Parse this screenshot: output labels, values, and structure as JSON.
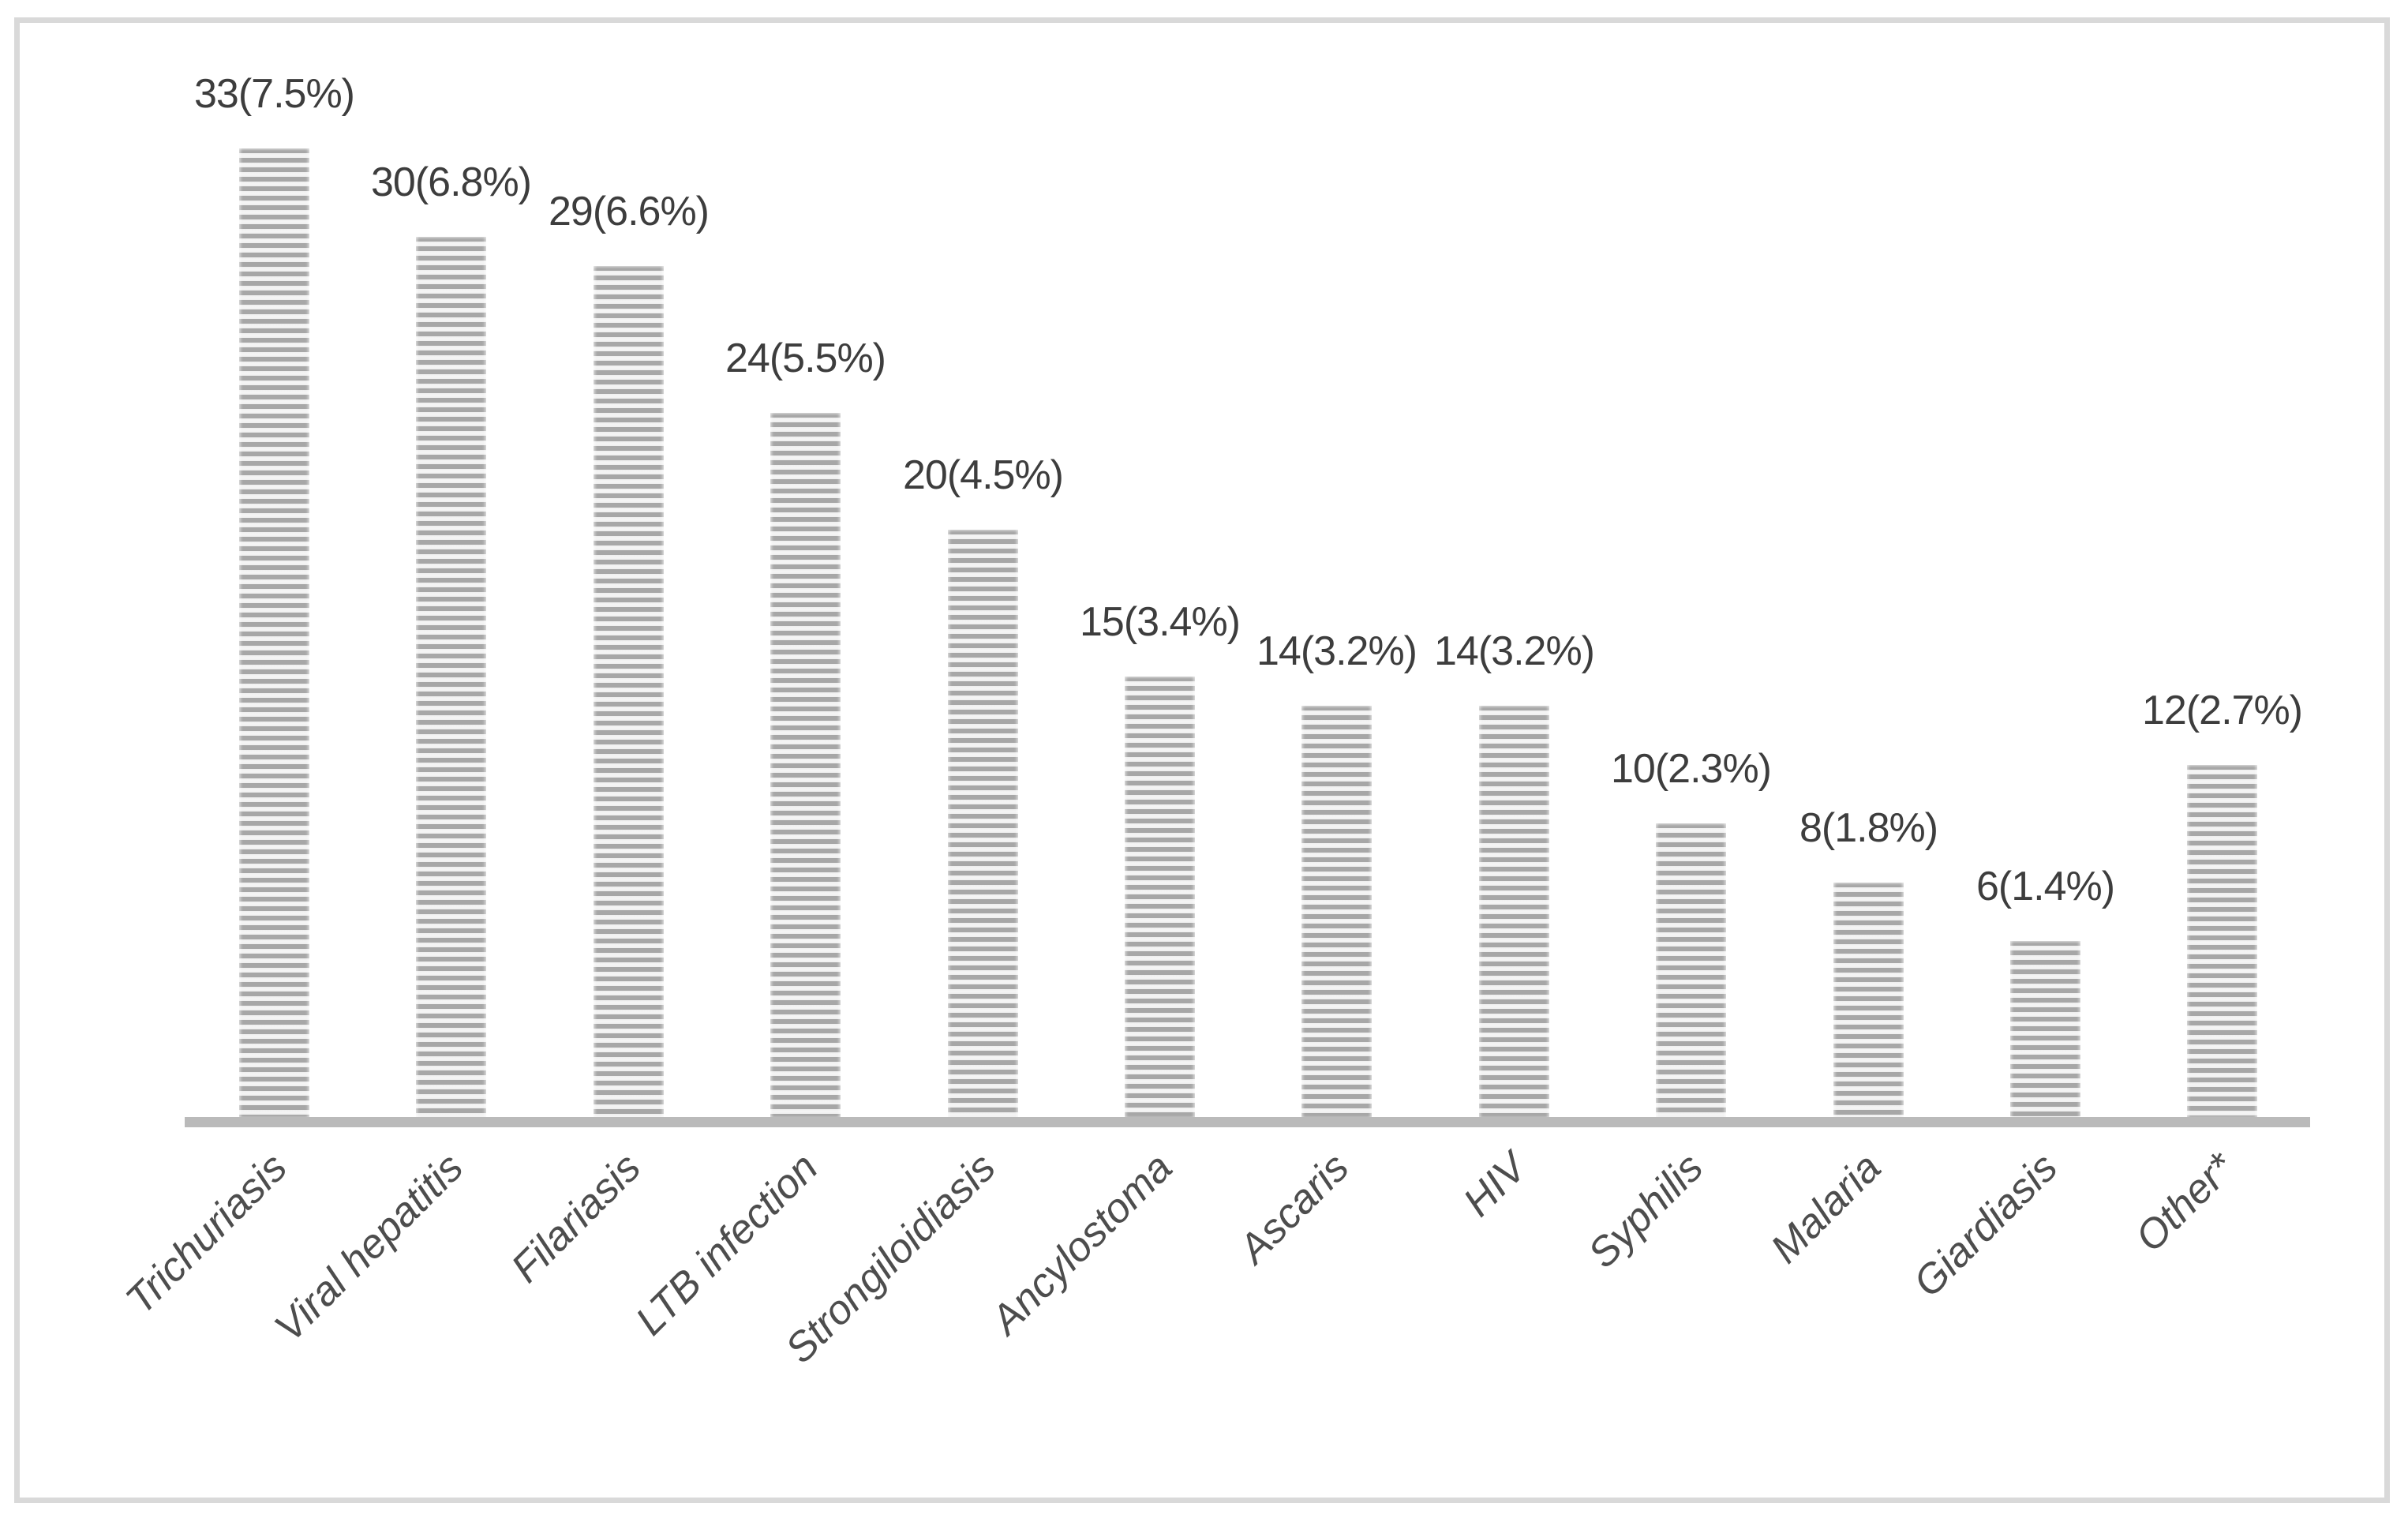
{
  "chart_data": {
    "type": "bar",
    "title": "",
    "xlabel": "",
    "ylabel": "",
    "categories": [
      "Trichuriasis",
      "Viral hepatitis",
      "Filariasis",
      "LTB infection",
      "Strongiloidiasis",
      "Ancylostoma",
      "Ascaris",
      "HIV",
      "Syphilis",
      "Malaria",
      "Giardiasis",
      "Other*"
    ],
    "values": [
      33,
      30,
      29,
      24,
      20,
      15,
      14,
      14,
      10,
      8,
      6,
      12
    ],
    "percentages": [
      7.5,
      6.8,
      6.6,
      5.5,
      4.5,
      3.4,
      3.2,
      3.2,
      2.3,
      1.8,
      1.4,
      2.7
    ],
    "point_labels": [
      "33(7.5%)",
      "30(6.8%)",
      "29(6.6%)",
      "24(5.5%)",
      "20(4.5%)",
      "15(3.4%)",
      "14(3.2%)",
      "14(3.2%)",
      "10(2.3%)",
      "8(1.8%)",
      "6(1.4%)",
      "12(2.7%)"
    ],
    "ylim": [
      0,
      33
    ],
    "grid": false,
    "legend": false,
    "y_axis_visible": false,
    "x_axis_tick_labels_rotation_deg": 45,
    "bar_fill": {
      "pattern": "horizontal-stripes",
      "stripe_dark": "#a7a7a7",
      "stripe_light": "#eeeeee",
      "stripe_highlight": "#f5f5f5"
    },
    "colors": {
      "axis_line": "#bababa",
      "value_label_text": "#3d3d3d",
      "category_label_text": "#4d4d4d",
      "frame_border": "#d9d9d9",
      "background": "#ffffff"
    }
  }
}
